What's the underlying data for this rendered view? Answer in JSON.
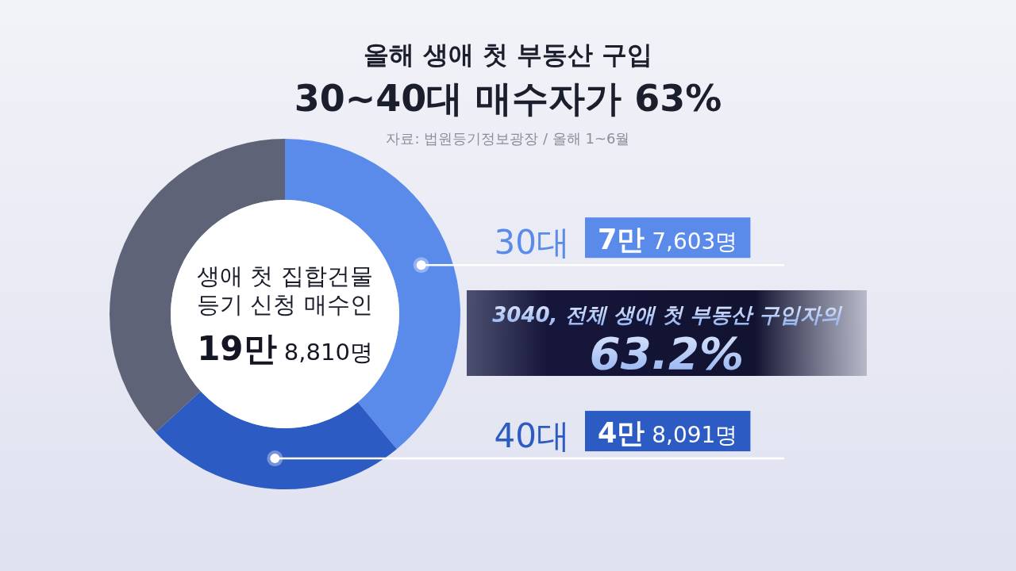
{
  "chart_data": {
    "type": "donut",
    "title": "올해 생애 첫 부동산 구입",
    "subtitle": "30~40대 매수자가 63%",
    "categories": [
      "30대",
      "40대",
      null
    ],
    "values": [
      39.0,
      24.2,
      36.8
    ],
    "colors": [
      "#5b8bea",
      "#2c5bc3",
      "#5f6377"
    ],
    "legend": "right",
    "annotations": [
      "자료: 법원등기정보광장 / 올해 1~6월",
      "생애 첫 집합건물",
      "등기 신청 매수인",
      "19만 8,810명",
      "7만 7,603명",
      "3040, 전체 생애 첫 부동산 구입자의",
      "63.2%",
      "4만 8,091명"
    ]
  }
}
